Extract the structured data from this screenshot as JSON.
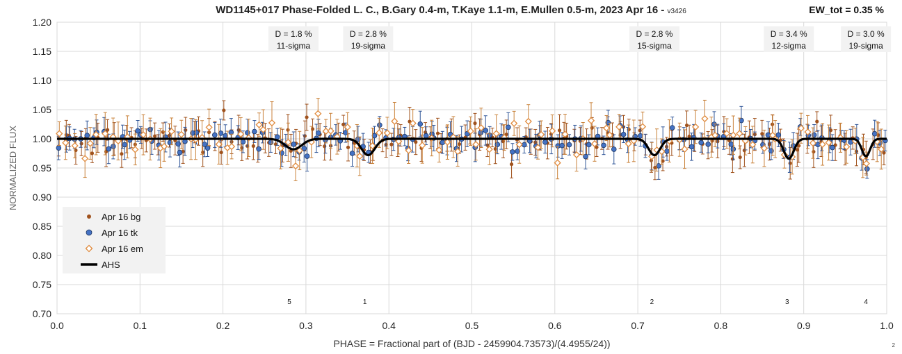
{
  "chart_data": {
    "type": "scatter",
    "title": "WD1145+017 Phase-Folded L. C., B.Gary 0.4-m, T.Kaye 1.1-m, E.Mullen 0.5-m, 2023 Apr 16 -",
    "version": "v3426",
    "ew_label": "EW_tot = 0.35 %",
    "corner_mark": "2",
    "xlabel": "PHASE = Fractional part of (BJD - 2459904.73573)/(4.4955/24))",
    "ylabel": "NORMALIZED FLUX",
    "xlim": [
      0.0,
      1.0
    ],
    "ylim": [
      0.7,
      1.2
    ],
    "x_ticks": [
      "0.0",
      "0.1",
      "0.2",
      "0.3",
      "0.4",
      "0.5",
      "0.6",
      "0.7",
      "0.8",
      "0.9",
      "1.0"
    ],
    "y_ticks": [
      "0.70",
      "0.75",
      "0.80",
      "0.85",
      "0.90",
      "0.95",
      "1.00",
      "1.05",
      "1.10",
      "1.15",
      "1.20"
    ],
    "grid": true,
    "legend_position": "lower-left",
    "legend": [
      {
        "label": "Apr 16 bg",
        "marker": "dot",
        "color": "#a0521d"
      },
      {
        "label": "Apr 16 tk",
        "marker": "circle",
        "color": "#4472c4",
        "edge": "#1f3864"
      },
      {
        "label": "Apr 16 em",
        "marker": "diamond",
        "color": "#e08a3c"
      },
      {
        "label": "AHS",
        "marker": "line",
        "color": "#000000"
      }
    ],
    "errorbar_colors": {
      "bg": "#a0521d",
      "tk": "#2f5597",
      "em": "#c9823a"
    },
    "model_dips": [
      {
        "center": 0.285,
        "depth": 0.018,
        "width": 0.01
      },
      {
        "center": 0.375,
        "depth": 0.028,
        "width": 0.008
      },
      {
        "center": 0.72,
        "depth": 0.028,
        "width": 0.007
      },
      {
        "center": 0.882,
        "depth": 0.034,
        "width": 0.006
      },
      {
        "center": 0.975,
        "depth": 0.03,
        "width": 0.005
      }
    ],
    "dip_labels": [
      {
        "line1": "D = 1.8 %",
        "line2": "11-sigma",
        "x": 0.285
      },
      {
        "line1": "D = 2.8 %",
        "line2": "19-sigma",
        "x": 0.375
      },
      {
        "line1": "D = 2.8 %",
        "line2": "15-sigma",
        "x": 0.72
      },
      {
        "line1": "D = 3.4 %",
        "line2": "12-sigma",
        "x": 0.882
      },
      {
        "line1": "D = 3.0 %",
        "line2": "19-sigma",
        "x": 0.975
      }
    ],
    "dip_ids": [
      {
        "id": "5",
        "x": 0.28
      },
      {
        "id": "1",
        "x": 0.371
      },
      {
        "id": "2",
        "x": 0.717
      },
      {
        "id": "3",
        "x": 0.88
      },
      {
        "id": "4",
        "x": 0.975
      }
    ],
    "series": [
      {
        "name": "Apr 16 bg",
        "key": "bg",
        "n": 150,
        "sigma": 0.025,
        "err": 0.022,
        "seed": 11
      },
      {
        "name": "Apr 16 tk",
        "key": "tk",
        "n": 150,
        "sigma": 0.022,
        "err": 0.02,
        "seed": 23
      },
      {
        "name": "Apr 16 em",
        "key": "em",
        "n": 110,
        "sigma": 0.03,
        "err": 0.028,
        "seed": 37
      }
    ]
  }
}
